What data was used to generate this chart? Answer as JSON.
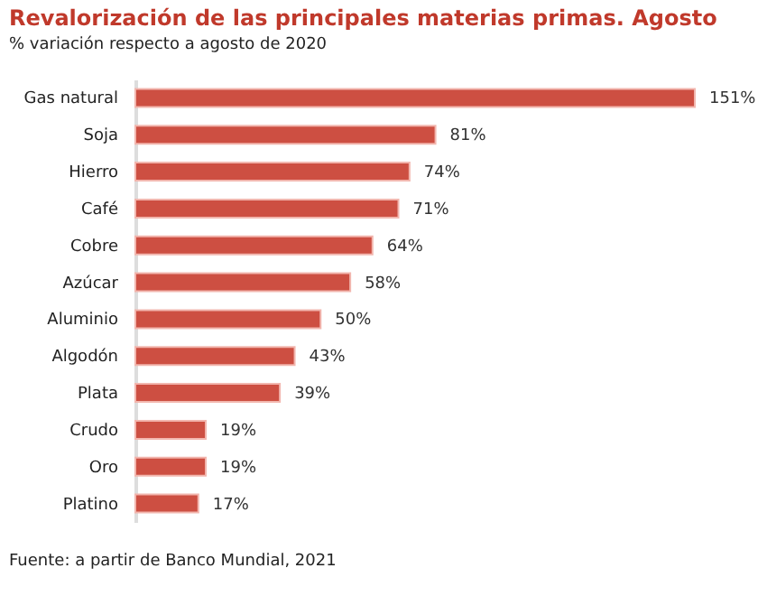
{
  "chart_data": {
    "type": "bar",
    "orientation": "horizontal",
    "title": "Revalorización de las principales materias primas. Agosto",
    "subtitle": "% variación respecto a agosto de 2020",
    "categories": [
      "Gas natural",
      "Soja",
      "Hierro",
      "Café",
      "Cobre",
      "Azúcar",
      "Aluminio",
      "Algodón",
      "Plata",
      "Crudo",
      "Oro",
      "Platino"
    ],
    "values": [
      151,
      81,
      74,
      71,
      64,
      58,
      50,
      43,
      39,
      19,
      19,
      17
    ],
    "value_labels": [
      "151%",
      "81%",
      "74%",
      "71%",
      "64%",
      "58%",
      "50%",
      "43%",
      "39%",
      "19%",
      "19%",
      "17%"
    ],
    "color": "#cd4f42",
    "grid": false,
    "annotations": [
      "Fuente: a partir de Banco Mundial, 2021"
    ]
  }
}
